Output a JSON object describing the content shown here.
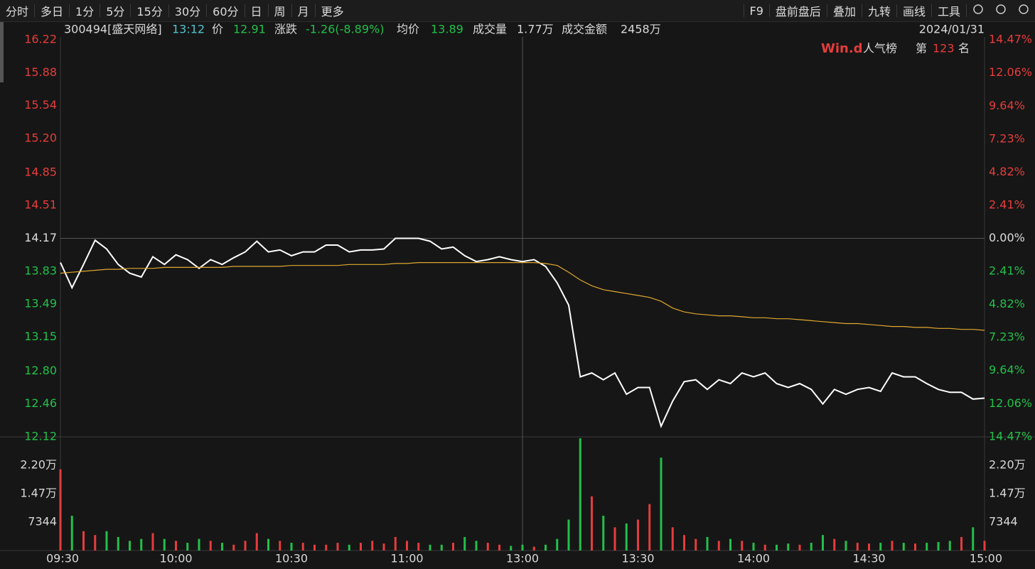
{
  "toolbar": {
    "left": [
      "分时",
      "多日",
      "1分",
      "5分",
      "15分",
      "30分",
      "60分",
      "日",
      "周",
      "月",
      "更多"
    ],
    "right": [
      "F9",
      "盘前盘后",
      "叠加",
      "九转",
      "画线",
      "工具"
    ]
  },
  "quote": {
    "code": "300494[盛天网络]",
    "time": "13:12",
    "price_label": "价",
    "price": 12.91,
    "change_label": "涨跌",
    "change": "-1.26(-8.89%)",
    "avg_label": "均价",
    "avg": 13.89,
    "volume_label": "成交量",
    "volume": "1.77万",
    "amount_label": "成交金额",
    "amount": "2458万",
    "date": "2024/01/31"
  },
  "ranking": {
    "brand": "Win.d",
    "label": "人气榜",
    "prefix": "第",
    "rank": 123,
    "suffix": "名"
  },
  "chart_data": [
    {
      "type": "line",
      "x": [
        0,
        3,
        6,
        9,
        12,
        15,
        18,
        21,
        24,
        27,
        30,
        33,
        36,
        39,
        42,
        45,
        48,
        51,
        54,
        57,
        60,
        63,
        66,
        69,
        72,
        75,
        78,
        81,
        84,
        87,
        90,
        93,
        96,
        99,
        102,
        105,
        108,
        111,
        114,
        117,
        120,
        123,
        126,
        129,
        132,
        135,
        138,
        141,
        144,
        147,
        150,
        153,
        156,
        159,
        162,
        165,
        168,
        171,
        174,
        177,
        180,
        183,
        186,
        189,
        192,
        195,
        198,
        201,
        204,
        207,
        210,
        213,
        216,
        219,
        222,
        225,
        228,
        231,
        234,
        237,
        240
      ],
      "xlim": [
        0,
        240
      ],
      "series": [
        {
          "color": "#ffffff",
          "values": [
            13.92,
            13.66,
            13.9,
            14.15,
            14.06,
            13.9,
            13.81,
            13.77,
            13.98,
            13.9,
            14.0,
            13.95,
            13.86,
            13.95,
            13.9,
            13.97,
            14.03,
            14.14,
            14.03,
            14.05,
            13.99,
            14.03,
            14.03,
            14.1,
            14.1,
            14.03,
            14.05,
            14.05,
            14.06,
            14.17,
            14.17,
            14.17,
            14.14,
            14.06,
            14.08,
            13.99,
            13.93,
            13.95,
            13.98,
            13.95,
            13.93,
            13.95,
            13.88,
            13.71,
            13.48,
            12.74,
            12.78,
            12.71,
            12.78,
            12.56,
            12.63,
            12.63,
            12.23,
            12.49,
            12.69,
            12.71,
            12.61,
            12.71,
            12.67,
            12.78,
            12.74,
            12.78,
            12.67,
            12.63,
            12.67,
            12.61,
            12.46,
            12.61,
            12.56,
            12.61,
            12.63,
            12.59,
            12.78,
            12.74,
            12.74,
            12.67,
            12.61,
            12.58,
            12.58,
            12.51,
            12.52
          ]
        },
        {
          "color": "#e0a830",
          "values": [
            13.81,
            13.82,
            13.83,
            13.84,
            13.85,
            13.85,
            13.86,
            13.86,
            13.86,
            13.87,
            13.87,
            13.87,
            13.87,
            13.87,
            13.87,
            13.88,
            13.88,
            13.88,
            13.88,
            13.88,
            13.89,
            13.89,
            13.89,
            13.89,
            13.89,
            13.9,
            13.9,
            13.9,
            13.9,
            13.91,
            13.91,
            13.92,
            13.92,
            13.92,
            13.92,
            13.92,
            13.92,
            13.92,
            13.92,
            13.92,
            13.92,
            13.92,
            13.91,
            13.89,
            13.82,
            13.74,
            13.68,
            13.64,
            13.62,
            13.6,
            13.58,
            13.56,
            13.52,
            13.45,
            13.41,
            13.39,
            13.38,
            13.37,
            13.37,
            13.36,
            13.35,
            13.35,
            13.34,
            13.34,
            13.33,
            13.32,
            13.31,
            13.3,
            13.29,
            13.29,
            13.28,
            13.27,
            13.26,
            13.26,
            13.25,
            13.25,
            13.24,
            13.24,
            13.23,
            13.23,
            13.22
          ]
        }
      ],
      "ylim": [
        12.12,
        16.22
      ],
      "yticks": [
        16.22,
        15.88,
        15.54,
        {
          "value": 15.2,
          "label": "15.20"
        },
        14.85,
        14.51,
        14.17,
        13.83,
        13.49,
        13.15,
        {
          "value": 12.8,
          "label": "12.80"
        },
        12.46,
        12.12
      ],
      "y2lim": [
        -14.47,
        14.47
      ],
      "y2ticks": [
        {
          "value": 14.47,
          "label": "14.47%"
        },
        {
          "value": 12.06,
          "label": "12.06%"
        },
        {
          "value": 9.64,
          "label": "9.64%"
        },
        {
          "value": 7.23,
          "label": "7.23%"
        },
        {
          "value": 4.82,
          "label": "4.82%"
        },
        {
          "value": 2.41,
          "label": "2.41%"
        },
        {
          "value": 0,
          "label": "0.00%"
        },
        {
          "value": -2.41,
          "label": "2.41%"
        },
        {
          "value": -4.82,
          "label": "4.82%"
        },
        {
          "value": -7.23,
          "label": "7.23%"
        },
        {
          "value": -9.64,
          "label": "9.64%"
        },
        {
          "value": -12.06,
          "label": "12.06%"
        },
        {
          "value": -14.47,
          "label": "14.47%"
        }
      ],
      "up_color": "#e63c3c",
      "down_color": "#22c04a",
      "flat_color": "#dddddd"
    },
    {
      "type": "bar",
      "x": [
        0,
        3,
        6,
        9,
        12,
        15,
        18,
        21,
        24,
        27,
        30,
        33,
        36,
        39,
        42,
        45,
        48,
        51,
        54,
        57,
        60,
        63,
        66,
        69,
        72,
        75,
        78,
        81,
        84,
        87,
        90,
        93,
        96,
        99,
        102,
        105,
        108,
        111,
        114,
        117,
        120,
        123,
        126,
        129,
        132,
        135,
        138,
        141,
        144,
        147,
        150,
        153,
        156,
        159,
        162,
        165,
        168,
        171,
        174,
        177,
        180,
        183,
        186,
        189,
        192,
        195,
        198,
        201,
        204,
        207,
        210,
        213,
        216,
        219,
        222,
        225,
        228,
        231,
        234,
        237,
        240
      ],
      "xlim": [
        0,
        240
      ],
      "xticks": [
        {
          "value": 0,
          "label": "09:30"
        },
        {
          "value": 30,
          "label": "10:00"
        },
        {
          "value": 60,
          "label": "10:30"
        },
        {
          "value": 90,
          "label": "11:00"
        },
        {
          "value": 120,
          "label": "13:00"
        },
        {
          "value": 150,
          "label": "13:30"
        },
        {
          "value": 180,
          "label": "14:00"
        },
        {
          "value": 210,
          "label": "14:30"
        },
        {
          "value": 240,
          "label": "15:00"
        }
      ],
      "values": [
        21000,
        9000,
        5000,
        4000,
        5000,
        3500,
        2500,
        3000,
        4500,
        3000,
        2500,
        2000,
        3000,
        2500,
        2000,
        1500,
        2500,
        4500,
        3000,
        2500,
        2000,
        2000,
        1500,
        1500,
        2000,
        1500,
        2000,
        2500,
        1800,
        3500,
        2500,
        2000,
        1500,
        1500,
        2000,
        3500,
        2500,
        2000,
        1500,
        1200,
        1500,
        1000,
        1500,
        3000,
        8000,
        29000,
        14000,
        9000,
        6000,
        7000,
        8000,
        12000,
        24000,
        6000,
        4000,
        3000,
        3500,
        2500,
        3000,
        2500,
        2000,
        1500,
        1500,
        1800,
        1500,
        2000,
        4000,
        3000,
        2500,
        2000,
        1800,
        2000,
        2500,
        2000,
        1800,
        2000,
        2200,
        2500,
        3500,
        6000,
        2500
      ],
      "ylim": [
        0,
        29376
      ],
      "yticks": [
        {
          "value": 22032,
          "label": "2.20万"
        },
        {
          "value": 14688,
          "label": "1.47万"
        },
        7344
      ]
    }
  ]
}
